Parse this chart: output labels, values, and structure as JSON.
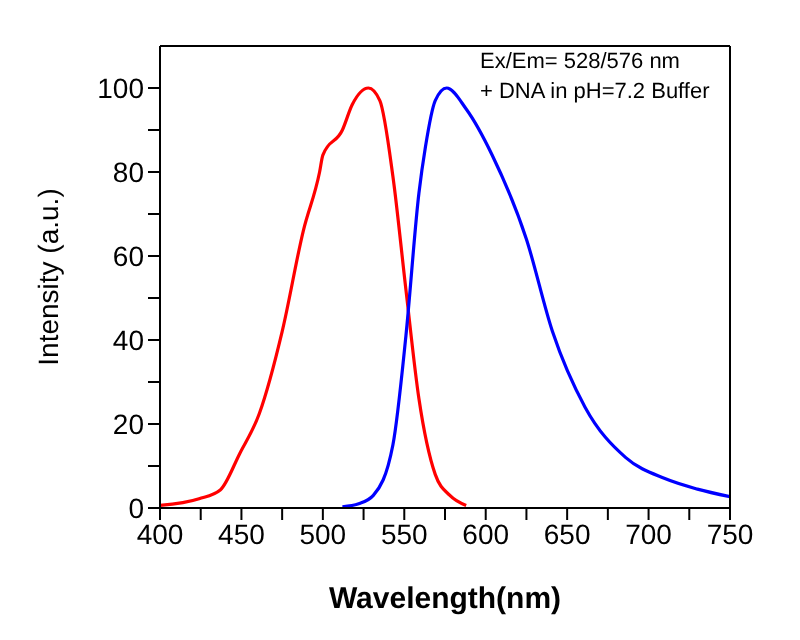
{
  "chart_data": {
    "type": "line",
    "xlabel": "Wavelength(nm)",
    "ylabel": "Intensity (a.u.)",
    "annotations": [
      "Ex/Em= 528/576 nm",
      "+ DNA in pH=7.2 Buffer"
    ],
    "xlim": [
      400,
      750
    ],
    "ylim": [
      0,
      110
    ],
    "xticks": [
      400,
      {
        "value": 425,
        "label": null
      },
      450,
      {
        "value": 475,
        "label": null
      },
      500,
      {
        "value": 525,
        "label": null
      },
      550,
      {
        "value": 575,
        "label": null
      },
      600,
      {
        "value": 625,
        "label": null
      },
      650,
      {
        "value": 675,
        "label": null
      },
      700,
      {
        "value": 725,
        "label": null
      },
      750
    ],
    "yticks": [
      0,
      {
        "value": 10,
        "label": null
      },
      20,
      {
        "value": 30,
        "label": null
      },
      40,
      {
        "value": 50,
        "label": null
      },
      60,
      {
        "value": 70,
        "label": null
      },
      80,
      {
        "value": 90,
        "label": null
      },
      100
    ],
    "marker": "none",
    "line_style": "solid",
    "series": [
      {
        "color": "#ff0000",
        "x": [
          400,
          424,
          437,
          449,
          461,
          475,
          488,
          498,
          500,
          512,
          518,
          528,
          535,
          543,
          551,
          559,
          569,
          578,
          588
        ],
        "values": [
          0.6,
          2.2,
          4.3,
          13,
          22.5,
          42,
          66,
          80,
          84,
          90,
          96,
          100,
          97,
          79,
          52,
          26,
          8,
          3,
          0.6
        ]
      },
      {
        "color": "#0000ff",
        "x": [
          512,
          522,
          531,
          543,
          551,
          559,
          563,
          569,
          576,
          588,
          604,
          625,
          641,
          661,
          686,
          710,
          730,
          750
        ],
        "values": [
          0.3,
          1,
          3,
          15,
          41,
          75,
          86,
          97,
          100,
          95,
          84,
          64,
          42,
          24,
          12,
          7,
          4.5,
          2.7
        ]
      }
    ]
  }
}
